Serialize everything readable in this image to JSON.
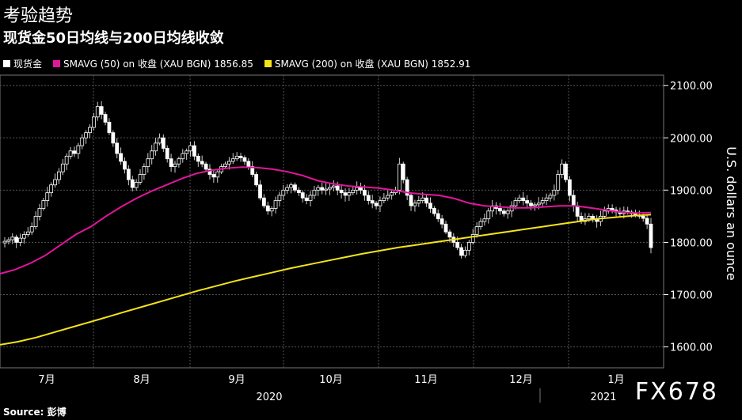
{
  "chart_data": {
    "type": "line",
    "title": "考验趋势",
    "subtitle": "现货金50日均线与200日均线收敛",
    "ylabel": "U.S. dollars an ounce",
    "ylim": [
      1560,
      2120
    ],
    "yticks": [
      "2100.00",
      "2000.00",
      "1900.00",
      "1800.00",
      "1700.00",
      "1600.00"
    ],
    "ytick_values": [
      2100,
      2000,
      1900,
      1800,
      1700,
      1600
    ],
    "month_labels": [
      "7月",
      "8月",
      "9月",
      "10月",
      "11月",
      "12月",
      "1月"
    ],
    "year_labels": [
      "2020",
      "2021"
    ],
    "grid": true,
    "legend_position": "top-left",
    "source": "Source: 彭博",
    "watermark": "FX678",
    "series": [
      {
        "name": "现货金",
        "kind": "candlestick",
        "color": "#ffffff",
        "values": [
          1802,
          1805,
          1810,
          1800,
          1808,
          1815,
          1820,
          1830,
          1850,
          1865,
          1880,
          1895,
          1910,
          1920,
          1935,
          1950,
          1965,
          1975,
          1970,
          1985,
          2000,
          2010,
          2020,
          2040,
          2060,
          2045,
          2030,
          2010,
          1990,
          1970,
          1955,
          1940,
          1920,
          1905,
          1915,
          1930,
          1945,
          1960,
          1975,
          1990,
          2000,
          1980,
          1960,
          1945,
          1950,
          1960,
          1970,
          1975,
          1985,
          1965,
          1955,
          1950,
          1940,
          1930,
          1925,
          1935,
          1945,
          1950,
          1955,
          1960,
          1965,
          1962,
          1955,
          1945,
          1930,
          1910,
          1885,
          1870,
          1860,
          1865,
          1880,
          1890,
          1900,
          1905,
          1910,
          1900,
          1895,
          1885,
          1880,
          1890,
          1900,
          1905,
          1900,
          1902,
          1905,
          1908,
          1900,
          1895,
          1890,
          1895,
          1900,
          1905,
          1900,
          1890,
          1880,
          1875,
          1870,
          1880,
          1885,
          1890,
          1895,
          1900,
          1950,
          1920,
          1890,
          1870,
          1875,
          1880,
          1885,
          1875,
          1865,
          1855,
          1845,
          1835,
          1820,
          1810,
          1800,
          1790,
          1775,
          1785,
          1800,
          1815,
          1830,
          1840,
          1845,
          1860,
          1870,
          1865,
          1860,
          1855,
          1860,
          1870,
          1880,
          1885,
          1880,
          1875,
          1870,
          1872,
          1875,
          1880,
          1885,
          1890,
          1900,
          1930,
          1950,
          1920,
          1890,
          1870,
          1850,
          1840,
          1845,
          1850,
          1845,
          1840,
          1850,
          1860,
          1865,
          1862,
          1858,
          1855,
          1860,
          1858,
          1855,
          1852,
          1850,
          1846,
          1835,
          1790
        ],
        "x_start": "2020-07-01",
        "x_end": "2021-01-22"
      },
      {
        "name": "SMAVG (50)  on 收盘 (XAU BGN) 1856.85",
        "kind": "line",
        "color": "#e0169b",
        "values": [
          1740,
          1748,
          1760,
          1775,
          1795,
          1815,
          1830,
          1850,
          1868,
          1884,
          1898,
          1910,
          1922,
          1932,
          1938,
          1942,
          1944,
          1943,
          1940,
          1935,
          1928,
          1918,
          1912,
          1908,
          1906,
          1904,
          1900,
          1895,
          1892,
          1890,
          1884,
          1875,
          1870,
          1868,
          1866,
          1866,
          1868,
          1870,
          1870,
          1866,
          1862,
          1858,
          1856,
          1857
        ]
      },
      {
        "name": "SMAVG (200)  on 收盘 (XAU BGN) 1852.91",
        "kind": "line",
        "color": "#f5e31a",
        "values": [
          1604,
          1610,
          1618,
          1628,
          1638,
          1648,
          1658,
          1668,
          1678,
          1688,
          1698,
          1708,
          1717,
          1726,
          1734,
          1742,
          1750,
          1757,
          1764,
          1771,
          1778,
          1784,
          1790,
          1795,
          1800,
          1805,
          1810,
          1815,
          1820,
          1825,
          1830,
          1835,
          1840,
          1845,
          1848,
          1851,
          1853
        ]
      }
    ]
  }
}
